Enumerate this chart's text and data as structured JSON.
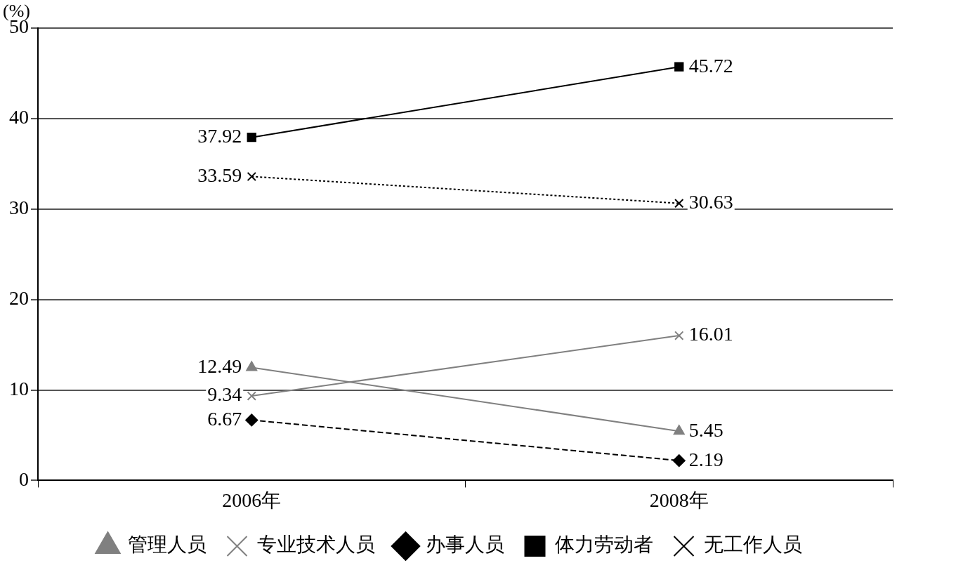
{
  "chart_data": {
    "type": "line",
    "ylabel": "(%)",
    "categories": [
      "2006年",
      "2008年"
    ],
    "series": [
      {
        "name": "管理人员",
        "color": "#808080",
        "marker": "triangle",
        "line_style": "solid",
        "values": [
          12.49,
          5.45
        ]
      },
      {
        "name": "专业技术人员",
        "color": "#808080",
        "marker": "cross",
        "line_style": "solid",
        "values": [
          9.34,
          16.01
        ]
      },
      {
        "name": "办事人员",
        "color": "#000000",
        "marker": "diamond",
        "line_style": "dashed",
        "values": [
          6.67,
          2.19
        ]
      },
      {
        "name": "体力劳动者",
        "color": "#000000",
        "marker": "square",
        "line_style": "solid",
        "values": [
          37.92,
          45.72
        ]
      },
      {
        "name": "无工作人员",
        "color": "#000000",
        "marker": "cross",
        "line_style": "dotted",
        "values": [
          33.59,
          30.63
        ]
      }
    ],
    "ylim": [
      0,
      50
    ],
    "yticks": [
      0,
      10,
      20,
      30,
      40,
      50
    ],
    "grid": "y",
    "legend": "bottom",
    "data_labels": true
  }
}
